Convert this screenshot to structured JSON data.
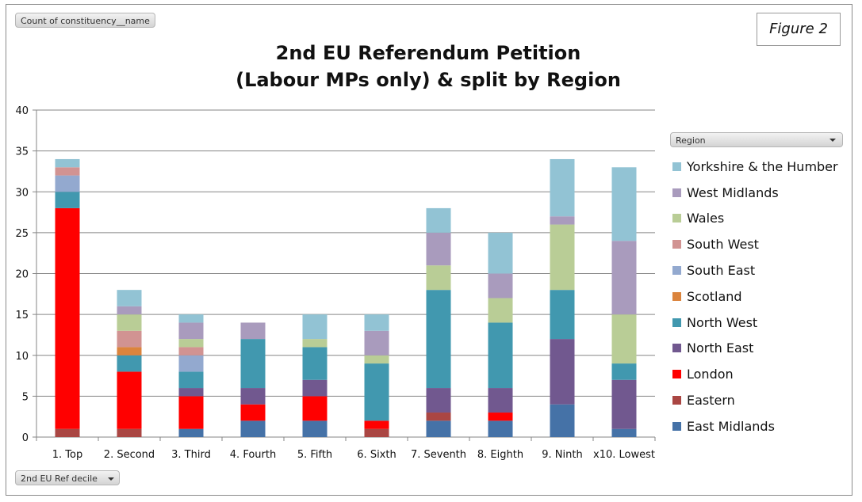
{
  "figure_label": "Figure 2",
  "field_buttons": {
    "values_field": "Count of constituency__name",
    "legend_field": "Region",
    "axis_field": "2nd EU Ref decile"
  },
  "chart_data": {
    "type": "bar",
    "stacked": true,
    "title": "2nd EU Referendum Petition",
    "subtitle": "(Labour MPs only) & split by Region",
    "xlabel": "",
    "ylabel": "",
    "ylim": [
      0,
      40
    ],
    "yticks": [
      0,
      5,
      10,
      15,
      20,
      25,
      30,
      35,
      40
    ],
    "grid": true,
    "legend_position": "right",
    "categories": [
      "1. Top",
      "2. Second",
      "3. Third",
      "4. Fourth",
      "5. Fifth",
      "6. Sixth",
      "7. Seventh",
      "8. Eighth",
      "9. Ninth",
      "x10. Lowest"
    ],
    "series": [
      {
        "name": "East Midlands",
        "color": "#4572A7",
        "values": [
          0,
          0,
          1,
          2,
          2,
          0,
          2,
          2,
          4,
          1
        ]
      },
      {
        "name": "Eastern",
        "color": "#AA4643",
        "values": [
          1,
          1,
          0,
          0,
          0,
          1,
          1,
          0,
          0,
          0
        ]
      },
      {
        "name": "London",
        "color": "#FF0000",
        "values": [
          27,
          7,
          4,
          2,
          3,
          1,
          0,
          1,
          0,
          0
        ]
      },
      {
        "name": "North East",
        "color": "#71588F",
        "values": [
          0,
          0,
          1,
          2,
          2,
          0,
          3,
          3,
          8,
          6
        ]
      },
      {
        "name": "North West",
        "color": "#4198AF",
        "values": [
          2,
          2,
          2,
          6,
          4,
          7,
          12,
          8,
          6,
          2
        ]
      },
      {
        "name": "Scotland",
        "color": "#DB843D",
        "values": [
          0,
          1,
          0,
          0,
          0,
          0,
          0,
          0,
          0,
          0
        ]
      },
      {
        "name": "South East",
        "color": "#93A9CF",
        "values": [
          2,
          0,
          2,
          0,
          0,
          0,
          0,
          0,
          0,
          0
        ]
      },
      {
        "name": "South West",
        "color": "#D19392",
        "values": [
          1,
          2,
          1,
          0,
          0,
          0,
          0,
          0,
          0,
          0
        ]
      },
      {
        "name": "Wales",
        "color": "#B9CD96",
        "values": [
          0,
          2,
          1,
          0,
          1,
          1,
          3,
          3,
          8,
          6
        ]
      },
      {
        "name": "West Midlands",
        "color": "#A99BBD",
        "values": [
          0,
          1,
          2,
          2,
          0,
          3,
          4,
          3,
          1,
          9
        ]
      },
      {
        "name": "Yorkshire & the Humber",
        "color": "#92C3D4",
        "values": [
          1,
          2,
          1,
          0,
          3,
          2,
          3,
          5,
          7,
          9
        ]
      }
    ]
  }
}
